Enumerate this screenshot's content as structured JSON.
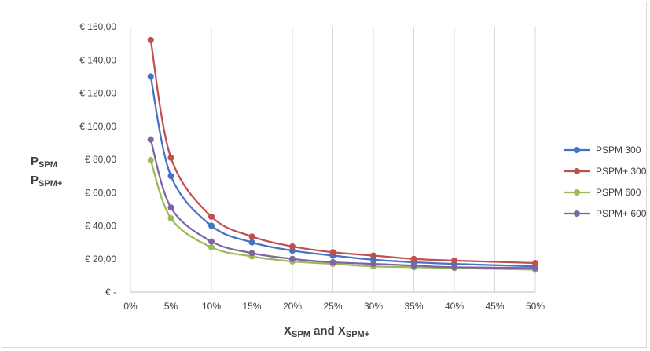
{
  "chart_data": {
    "type": "line",
    "smooth": true,
    "markers": "circle",
    "x": [
      0.025,
      0.05,
      0.1,
      0.15,
      0.2,
      0.25,
      0.3,
      0.35,
      0.4,
      0.5
    ],
    "xlim": [
      0,
      0.5
    ],
    "xticks": [
      0,
      0.05,
      0.1,
      0.15,
      0.2,
      0.25,
      0.3,
      0.35,
      0.4,
      0.45,
      0.5
    ],
    "xtick_labels": [
      "0%",
      "5%",
      "10%",
      "15%",
      "20%",
      "25%",
      "30%",
      "35%",
      "40%",
      "45%",
      "50%"
    ],
    "ylim": [
      0,
      160
    ],
    "yticks": [
      0,
      20,
      40,
      60,
      80,
      100,
      120,
      140,
      160
    ],
    "ytick_labels": [
      "€ -",
      "€ 20,00",
      "€ 40,00",
      "€ 60,00",
      "€ 80,00",
      "€ 100,00",
      "€ 120,00",
      "€ 140,00",
      "€ 160,00"
    ],
    "ylabel": {
      "line1": "P",
      "line1_sub": "SPM",
      "line2": "P",
      "line2_sub": "SPM+"
    },
    "xlabel": {
      "p1": "X",
      "p1_sub": "SPM",
      "p2": " and X",
      "p2_sub": "SPM+"
    },
    "grid": {
      "vertical": true,
      "horizontal": false
    },
    "legend_position": "right",
    "series": [
      {
        "name": "PSPM 300",
        "color": "#4472c4",
        "values": [
          130,
          70,
          40,
          30,
          25,
          22,
          19.5,
          18,
          17,
          15.5
        ]
      },
      {
        "name": "PSPM+ 300",
        "color": "#c0504d",
        "values": [
          152,
          81,
          45.5,
          33.5,
          27.5,
          24,
          22,
          20,
          19,
          17.5
        ]
      },
      {
        "name": "PSPM 600",
        "color": "#9bbb59",
        "values": [
          79.5,
          44.5,
          27,
          21.5,
          18.5,
          17,
          15.5,
          15,
          14.5,
          13.5
        ]
      },
      {
        "name": "PSPM+ 600",
        "color": "#8064a2",
        "values": [
          92,
          51,
          30.5,
          23.5,
          20,
          18,
          17,
          16,
          15,
          14.5
        ]
      }
    ]
  }
}
